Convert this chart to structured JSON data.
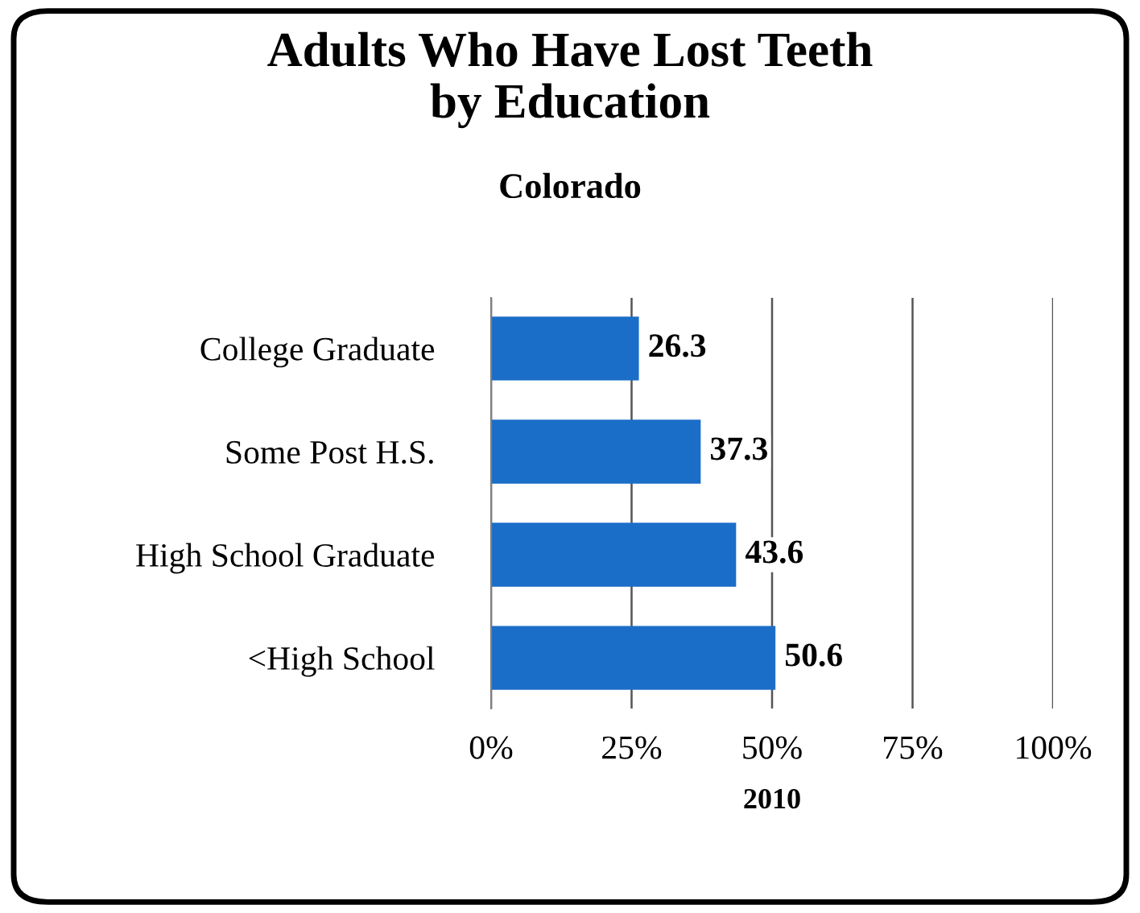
{
  "chart_data": {
    "type": "bar",
    "orientation": "horizontal",
    "title": "Adults Who Have Lost Teeth\nby Education",
    "subtitle": "Colorado",
    "xlabel": "2010",
    "categories": [
      "College Graduate",
      "Some Post H.S.",
      "High School Graduate",
      "<High School"
    ],
    "values": [
      26.3,
      37.3,
      43.6,
      50.6
    ],
    "color": "#1b6ec8",
    "data_labels": true,
    "xlim": [
      0,
      100
    ],
    "xticks": [
      {
        "value": 0,
        "label": "0%"
      },
      {
        "value": 25,
        "label": "25%"
      },
      {
        "value": 50,
        "label": "50%"
      },
      {
        "value": 75,
        "label": "75%"
      },
      {
        "value": 100,
        "label": "100%"
      }
    ],
    "grid": "x",
    "legend": false
  }
}
